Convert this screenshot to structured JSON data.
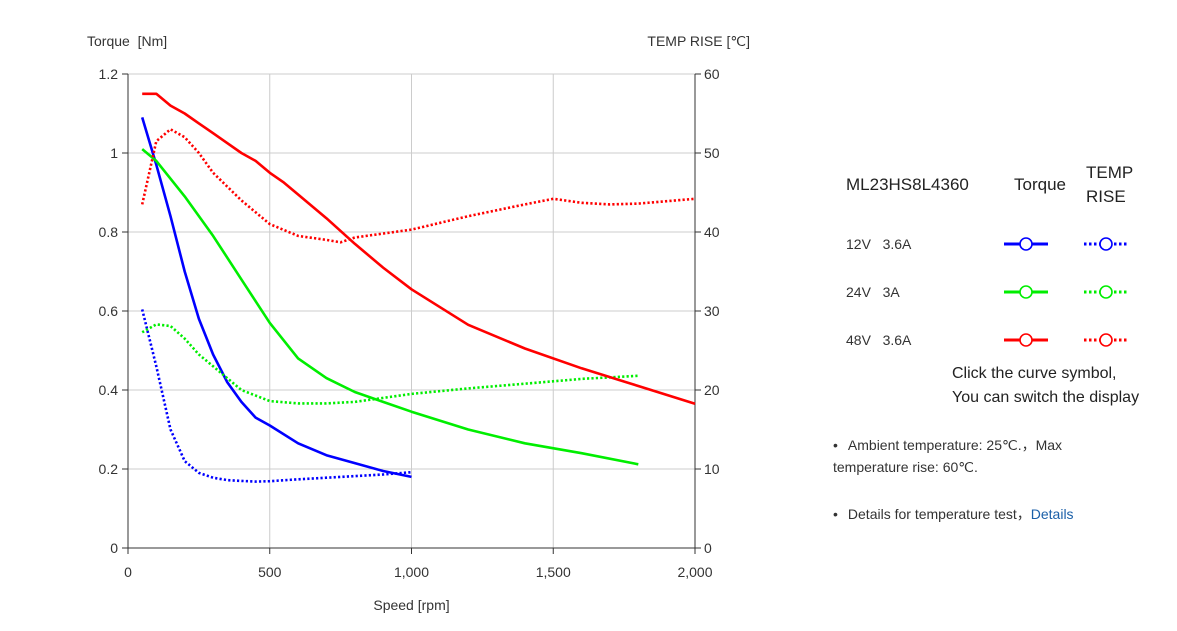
{
  "chart_data": {
    "type": "line",
    "left_axis_title": "Torque  [Nm]",
    "right_axis_title": "TEMP RISE [℃]",
    "xlabel": "Speed [rpm]",
    "xlim": [
      0,
      2000
    ],
    "ylim_left": [
      0,
      1.2
    ],
    "ylim_right": [
      0,
      60
    ],
    "x_ticks": [
      0,
      500,
      1000,
      1500,
      2000
    ],
    "x_tick_labels": [
      "0",
      "500",
      "1,000",
      "1,500",
      "2,000"
    ],
    "y_ticks_left": [
      0,
      0.2,
      0.4,
      0.6,
      0.8,
      1,
      1.2
    ],
    "y_tick_labels_left": [
      "0",
      "0.2",
      "0.4",
      "0.6",
      "0.8",
      "1",
      "1.2"
    ],
    "y_ticks_right": [
      0,
      10,
      20,
      30,
      40,
      50,
      60
    ],
    "y_tick_labels_right": [
      "0",
      "10",
      "20",
      "30",
      "40",
      "50",
      "60"
    ],
    "grid": true,
    "series": [
      {
        "name": "12V 3.6A Torque",
        "axis": "left",
        "style": "solid",
        "color": "#0000ff",
        "x": [
          50,
          100,
          150,
          200,
          250,
          300,
          350,
          400,
          450,
          500,
          600,
          700,
          800,
          900,
          1000
        ],
        "y": [
          1.09,
          0.97,
          0.84,
          0.7,
          0.58,
          0.49,
          0.42,
          0.37,
          0.33,
          0.31,
          0.265,
          0.235,
          0.215,
          0.195,
          0.18
        ]
      },
      {
        "name": "12V 3.6A TEMP RISE",
        "axis": "right",
        "style": "dotted",
        "color": "#0000ff",
        "x": [
          50,
          100,
          150,
          200,
          250,
          300,
          350,
          400,
          450,
          500,
          600,
          700,
          800,
          900,
          1000
        ],
        "y": [
          30.2,
          23,
          15,
          11,
          9.5,
          8.9,
          8.6,
          8.5,
          8.4,
          8.45,
          8.7,
          8.9,
          9.1,
          9.3,
          9.6
        ]
      },
      {
        "name": "24V 3A Torque",
        "axis": "left",
        "style": "solid",
        "color": "#00ee00",
        "x": [
          50,
          100,
          200,
          300,
          400,
          500,
          600,
          700,
          800,
          900,
          1000,
          1200,
          1400,
          1600,
          1800
        ],
        "y": [
          1.01,
          0.98,
          0.89,
          0.79,
          0.68,
          0.57,
          0.48,
          0.43,
          0.395,
          0.37,
          0.345,
          0.3,
          0.265,
          0.24,
          0.212
        ]
      },
      {
        "name": "24V 3A TEMP RISE",
        "axis": "right",
        "style": "dotted",
        "color": "#00ee00",
        "x": [
          50,
          100,
          150,
          200,
          250,
          300,
          400,
          500,
          600,
          700,
          800,
          1000,
          1200,
          1400,
          1600,
          1800
        ],
        "y": [
          27.3,
          28.3,
          28.1,
          26.5,
          24.5,
          23,
          20,
          18.6,
          18.3,
          18.3,
          18.5,
          19.5,
          20.2,
          20.8,
          21.4,
          21.8
        ]
      },
      {
        "name": "48V 3.6A Torque",
        "axis": "left",
        "style": "solid",
        "color": "#ff0000",
        "x": [
          50,
          100,
          150,
          200,
          250,
          300,
          350,
          400,
          450,
          500,
          550,
          600,
          700,
          800,
          900,
          1000,
          1200,
          1400,
          1600,
          1800,
          2000
        ],
        "y": [
          1.15,
          1.15,
          1.12,
          1.1,
          1.075,
          1.05,
          1.025,
          1.0,
          0.98,
          0.95,
          0.925,
          0.895,
          0.835,
          0.77,
          0.71,
          0.655,
          0.565,
          0.505,
          0.455,
          0.41,
          0.365
        ]
      },
      {
        "name": "48V 3.6A TEMP RISE",
        "axis": "right",
        "style": "dotted",
        "color": "#ff0000",
        "x": [
          50,
          100,
          150,
          200,
          250,
          300,
          400,
          500,
          600,
          700,
          750,
          800,
          1000,
          1200,
          1400,
          1500,
          1600,
          1700,
          1800,
          2000
        ],
        "y": [
          43.5,
          51.5,
          53,
          52,
          50,
          47.5,
          44,
          41,
          39.5,
          39,
          38.7,
          39.3,
          40.3,
          42,
          43.5,
          44.2,
          43.7,
          43.5,
          43.6,
          44.2
        ]
      }
    ]
  },
  "legend": {
    "col_model": "ML23HS8L4360",
    "col_torque": "Torque",
    "col_temp_line1": "TEMP",
    "col_temp_line2": "RISE",
    "rows": [
      {
        "label": "12V   3.6A",
        "color": "#0000ff"
      },
      {
        "label": "24V   3A",
        "color": "#00ee00"
      },
      {
        "label": "48V   3.6A",
        "color": "#ff0000"
      }
    ]
  },
  "hint_line1": "Click the curve symbol,",
  "hint_line2": "You can switch the display",
  "note1": "Ambient temperature: 25℃.，Max temperature rise: 60℃.",
  "note2_text": "Details for temperature test，",
  "note2_link": "Details"
}
